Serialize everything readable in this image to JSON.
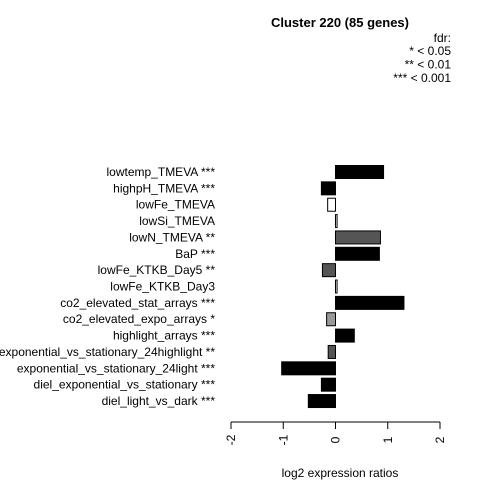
{
  "chart_data": {
    "type": "bar",
    "orientation": "horizontal",
    "title": "Cluster 220 (85 genes)",
    "xlabel": "log2 expression ratios",
    "xlim": [
      -2,
      2
    ],
    "xticks": [
      "-2",
      "-1",
      "0",
      "1",
      "2"
    ],
    "legend": {
      "title": "fdr:",
      "entries": [
        "* < 0.05",
        "** < 0.01",
        "*** < 0.001"
      ],
      "placement": "top-right"
    },
    "categories": [
      "lowtemp_TMEVA ***",
      "highpH_TMEVA ***",
      "lowFe_TMEVA",
      "lowSi_TMEVA",
      "lowN_TMEVA **",
      "BaP ***",
      "lowFe_KTKB_Day5 **",
      "lowFe_KTKB_Day3",
      "co2_elevated_stat_arrays ***",
      "co2_elevated_expo_arrays *",
      "highlight_arrays ***",
      "exponential_vs_stationary_24highlight **",
      "exponential_vs_stationary_24light ***",
      "diel_exponential_vs_stationary ***",
      "diel_light_vs_dark ***"
    ],
    "values": [
      0.92,
      -0.27,
      -0.15,
      0.03,
      0.86,
      0.84,
      -0.25,
      0.03,
      1.31,
      -0.17,
      0.36,
      -0.14,
      -1.03,
      -0.27,
      -0.52
    ],
    "colors": [
      "#000000",
      "#000000",
      "#ffffff",
      "#ffffff",
      "#555555",
      "#000000",
      "#555555",
      "#ffffff",
      "#000000",
      "#999999",
      "#000000",
      "#555555",
      "#000000",
      "#000000",
      "#000000"
    ]
  }
}
